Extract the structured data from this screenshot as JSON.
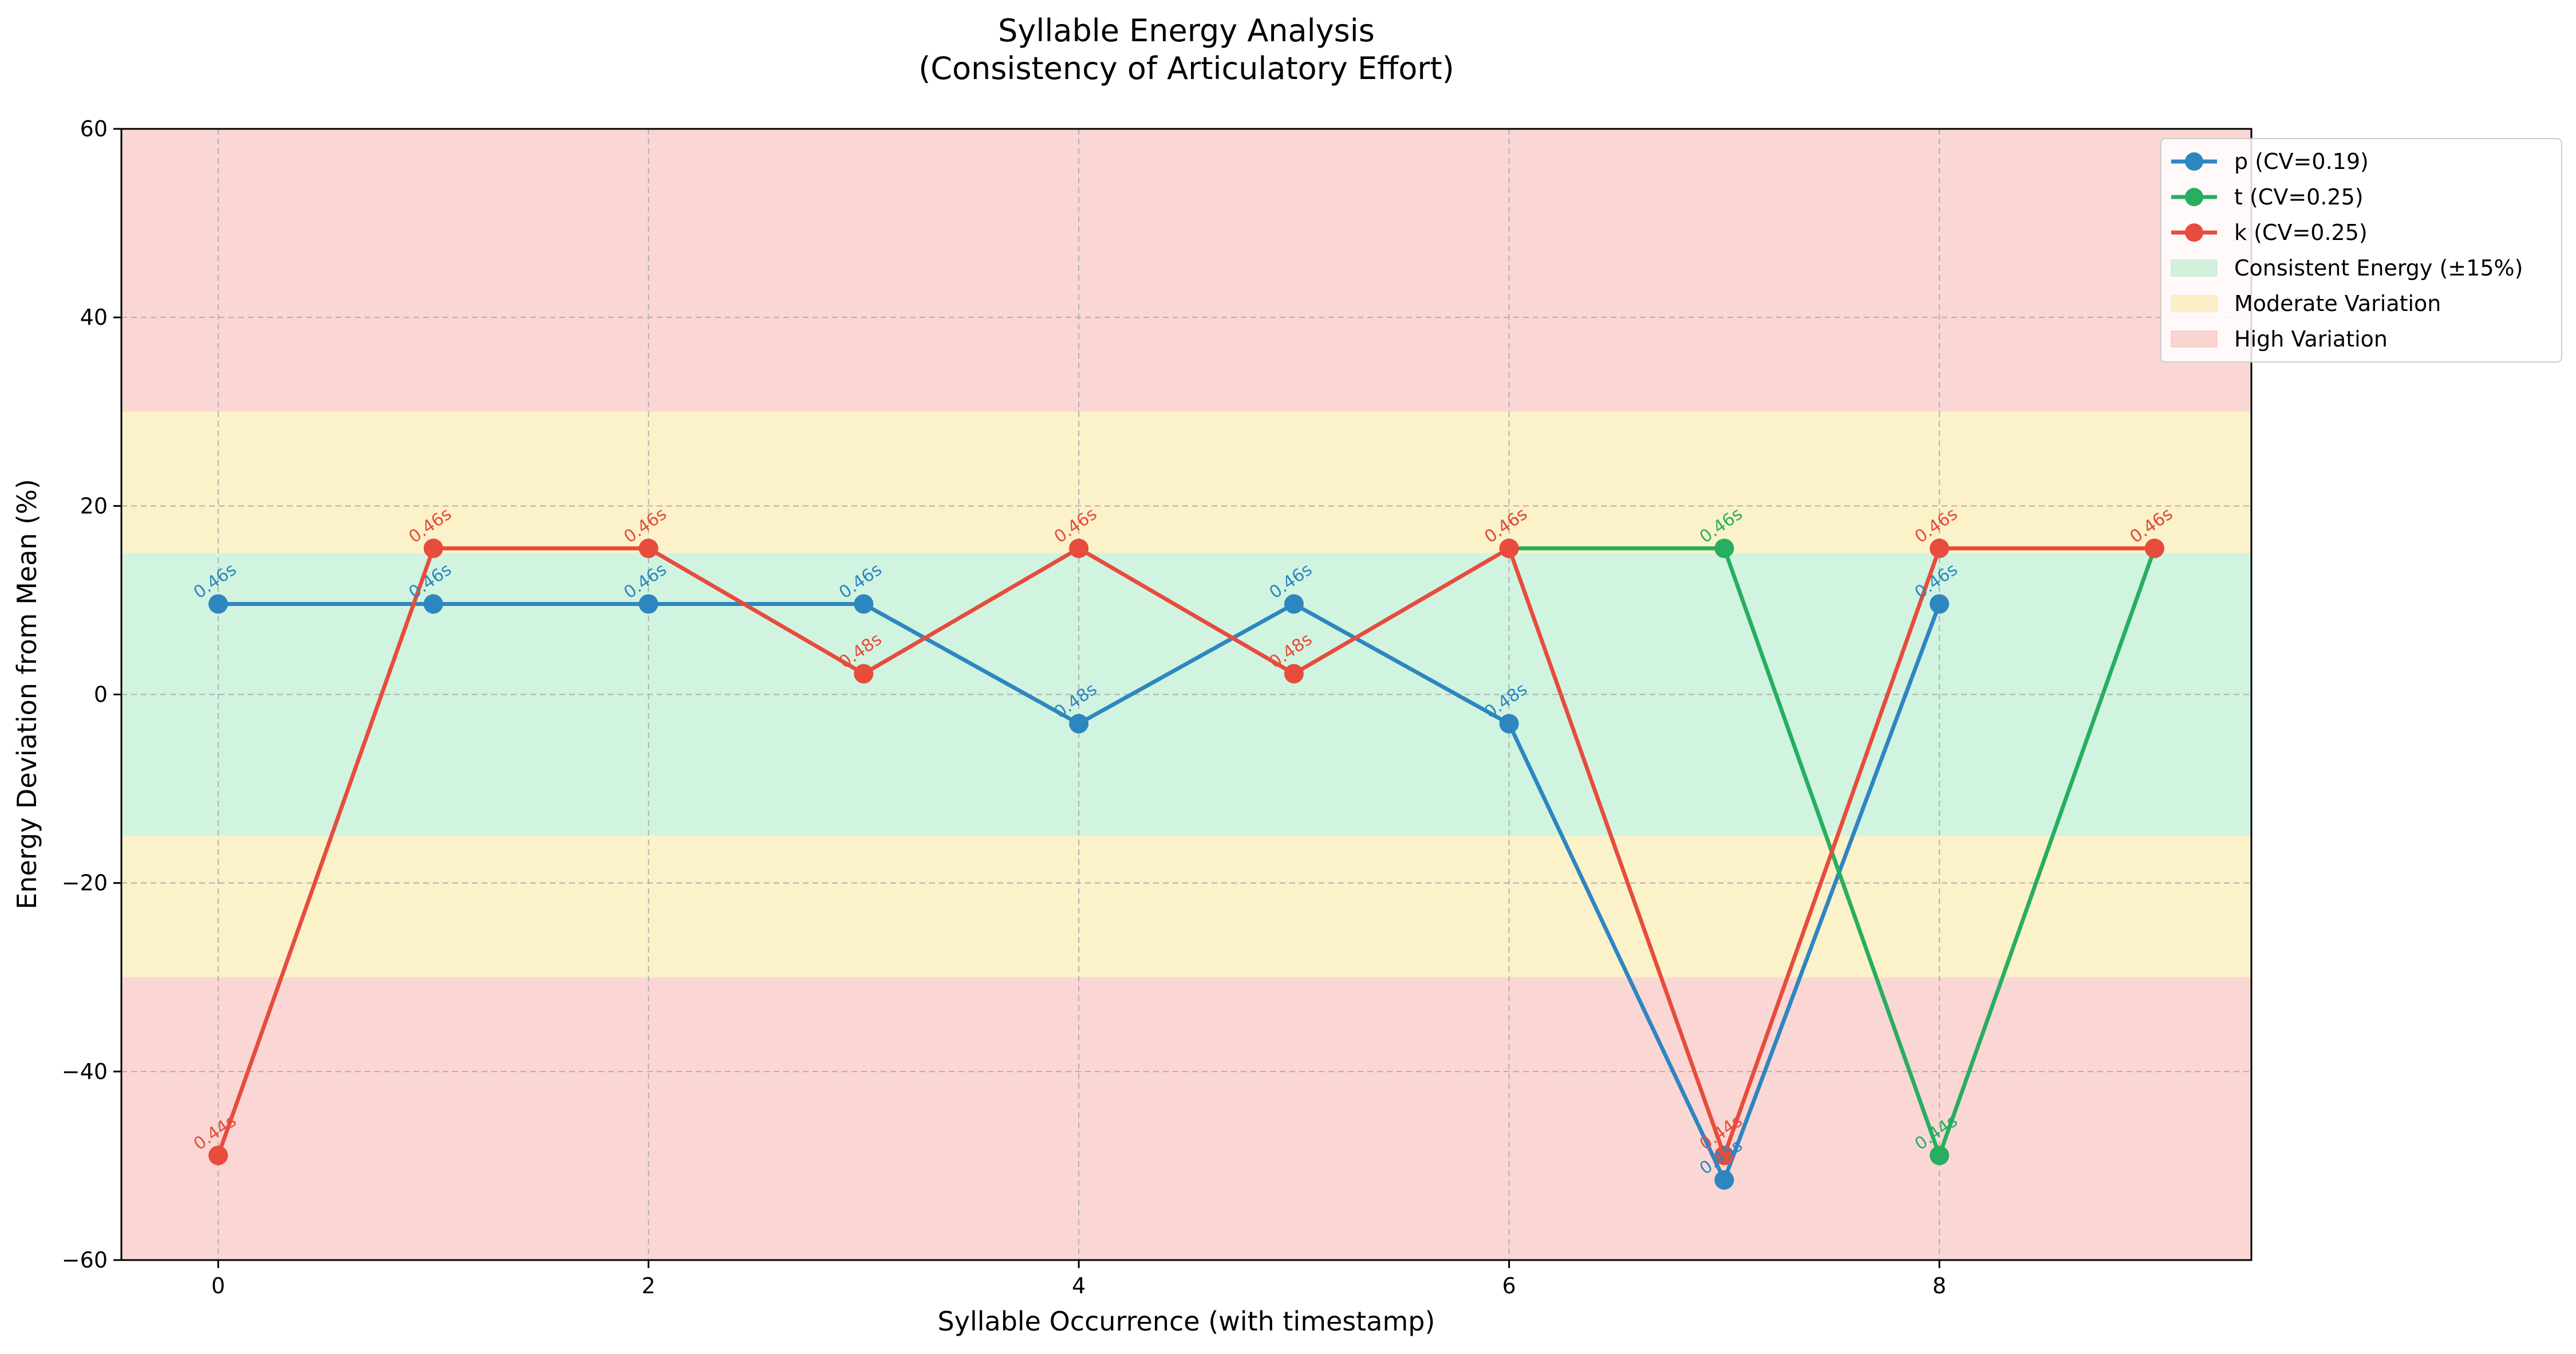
{
  "chart_data": {
    "type": "line",
    "title": "Syllable Energy Analysis",
    "subtitle": "(Consistency of Articulatory Effort)",
    "xlabel": "Syllable Occurrence (with timestamp)",
    "ylabel": "Energy Deviation from Mean (%)",
    "xlim": [
      -0.45,
      9.45
    ],
    "ylim": [
      -60,
      60
    ],
    "xticks": [
      0,
      2,
      4,
      6,
      8
    ],
    "yticks": [
      -60,
      -40,
      -20,
      0,
      20,
      40,
      60
    ],
    "xtick_labels": [
      "0",
      "2",
      "4",
      "6",
      "8"
    ],
    "ytick_labels": [
      "−60",
      "−40",
      "−20",
      "0",
      "20",
      "40",
      "60"
    ],
    "grid": true,
    "legend_position": "upper-right-outside",
    "bands": [
      {
        "name": "High Variation",
        "from": 30,
        "to": 60,
        "color": "#f5b7b1"
      },
      {
        "name": "Moderate Variation",
        "from": 15,
        "to": 30,
        "color": "#f9e79f"
      },
      {
        "name": "Consistent Energy (±15%)",
        "from": -15,
        "to": 15,
        "color": "#abebc6"
      },
      {
        "name": "Moderate Variation",
        "from": -30,
        "to": -15,
        "color": "#f9e79f"
      },
      {
        "name": "High Variation",
        "from": -60,
        "to": -30,
        "color": "#f5b7b1"
      }
    ],
    "series": [
      {
        "name": "p (CV=0.19)",
        "color": "#2e86c1",
        "x": [
          0,
          1,
          2,
          3,
          4,
          5,
          6,
          7,
          8
        ],
        "y": [
          9.6,
          9.6,
          9.6,
          9.6,
          -3.1,
          9.6,
          -3.1,
          -51.5,
          9.6
        ],
        "labels": [
          "0.46s",
          "0.46s",
          "0.46s",
          "0.46s",
          "0.48s",
          "0.46s",
          "0.48s",
          "0.45s",
          "0.46s"
        ]
      },
      {
        "name": "t (CV=0.25)",
        "color": "#27ae60",
        "x": [
          6,
          7,
          8,
          9
        ],
        "y": [
          15.5,
          15.5,
          -48.9,
          15.5
        ],
        "labels": [
          "0.46s",
          "0.46s",
          "0.44s",
          "0.46s"
        ]
      },
      {
        "name": "k (CV=0.25)",
        "color": "#e74c3c",
        "x": [
          0,
          1,
          2,
          3,
          4,
          5,
          6,
          7,
          8,
          9
        ],
        "y": [
          -48.9,
          15.5,
          15.5,
          2.2,
          15.5,
          2.2,
          15.5,
          -48.9,
          15.5,
          15.5
        ],
        "labels": [
          "0.44s",
          "0.46s",
          "0.46s",
          "0.48s",
          "0.46s",
          "0.48s",
          "0.46s",
          "0.44s",
          "0.46s",
          "0.46s"
        ]
      }
    ],
    "legend": [
      {
        "label": "p (CV=0.19)",
        "kind": "line",
        "color": "#2e86c1"
      },
      {
        "label": "t (CV=0.25)",
        "kind": "line",
        "color": "#27ae60"
      },
      {
        "label": "k (CV=0.25)",
        "kind": "line",
        "color": "#e74c3c"
      },
      {
        "label": "Consistent Energy (±15%)",
        "kind": "patch",
        "color": "#abebc6"
      },
      {
        "label": "Moderate Variation",
        "kind": "patch",
        "color": "#f9e79f"
      },
      {
        "label": "High Variation",
        "kind": "patch",
        "color": "#f5b7b1"
      }
    ]
  }
}
